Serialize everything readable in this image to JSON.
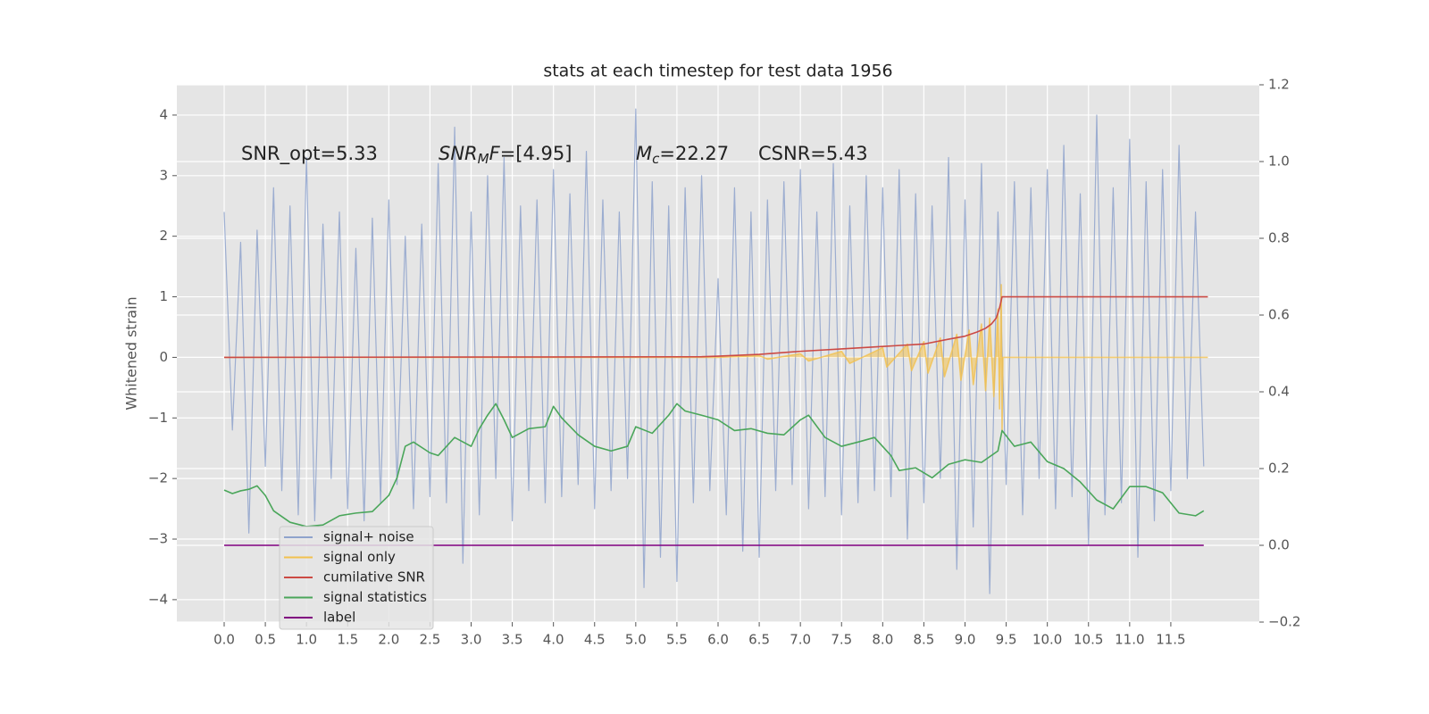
{
  "chart_data": {
    "type": "line",
    "title": "stats at each timestep for test data 1956",
    "ylabel": "Whitened strain",
    "annotations": [
      {
        "parts": [
          {
            "text": "SNR_opt=5.33",
            "style": "normal"
          }
        ]
      },
      {
        "parts": [
          {
            "text": "SNR",
            "style": "italic"
          },
          {
            "text": "M",
            "style": "sub"
          },
          {
            "text": "F",
            "style": "italic"
          },
          {
            "text": "=[4.95]",
            "style": "normal"
          }
        ]
      },
      {
        "parts": [
          {
            "text": "M",
            "style": "italic"
          },
          {
            "text": "c",
            "style": "sub"
          },
          {
            "text": "=22.27",
            "style": "normal"
          }
        ]
      },
      {
        "parts": [
          {
            "text": "CSNR=5.43",
            "style": "normal"
          }
        ]
      }
    ],
    "xlim": [
      -0.575,
      12.575
    ],
    "ylim": [
      -4.37,
      4.5
    ],
    "y2lim": [
      -0.2,
      1.2
    ],
    "xticks": [
      {
        "value": 0,
        "label": "0.0"
      },
      0.5,
      {
        "value": 1,
        "label": "1.0"
      },
      1.5,
      {
        "value": 2,
        "label": "2.0"
      },
      2.5,
      {
        "value": 3,
        "label": "3.0"
      },
      3.5,
      {
        "value": 4,
        "label": "4.0"
      },
      4.5,
      {
        "value": 5,
        "label": "5.0"
      },
      5.5,
      {
        "value": 6,
        "label": "6.0"
      },
      6.5,
      {
        "value": 7,
        "label": "7.0"
      },
      7.5,
      {
        "value": 8,
        "label": "8.0"
      },
      8.5,
      {
        "value": 9,
        "label": "9.0"
      },
      9.5,
      {
        "value": 10,
        "label": "10.0"
      },
      10.5,
      {
        "value": 11,
        "label": "11.0"
      },
      11.5
    ],
    "yticks": [
      {
        "value": -4,
        "label": "−4"
      },
      {
        "value": -3,
        "label": "−3"
      },
      {
        "value": -2,
        "label": "−2"
      },
      {
        "value": -1,
        "label": "−1"
      },
      0,
      1,
      2,
      3,
      4
    ],
    "y2ticks": [
      {
        "value": -0.2,
        "label": "−0.2"
      },
      {
        "value": 0,
        "label": "0.0"
      },
      0.2,
      0.4,
      0.6,
      0.8,
      {
        "value": 1,
        "label": "1.0"
      },
      1.2
    ],
    "grid": true,
    "legend": "lower left",
    "series": [
      {
        "name": "signal+ noise",
        "color": "#8fa3cc",
        "x": [
          0,
          0.1,
          0.2,
          0.3,
          0.4,
          0.5,
          0.6,
          0.7,
          0.8,
          0.9,
          1.0,
          1.1,
          1.2,
          1.3,
          1.4,
          1.5,
          1.6,
          1.7,
          1.8,
          1.9,
          2.0,
          2.1,
          2.2,
          2.3,
          2.4,
          2.5,
          2.6,
          2.7,
          2.8,
          2.9,
          3.0,
          3.1,
          3.2,
          3.3,
          3.4,
          3.5,
          3.6,
          3.7,
          3.8,
          3.9,
          4.0,
          4.1,
          4.2,
          4.3,
          4.4,
          4.5,
          4.6,
          4.7,
          4.8,
          4.9,
          5.0,
          5.1,
          5.2,
          5.3,
          5.4,
          5.5,
          5.6,
          5.7,
          5.8,
          5.9,
          6.0,
          6.1,
          6.2,
          6.3,
          6.4,
          6.5,
          6.6,
          6.7,
          6.8,
          6.9,
          7.0,
          7.1,
          7.2,
          7.3,
          7.4,
          7.5,
          7.6,
          7.7,
          7.8,
          7.9,
          8.0,
          8.1,
          8.2,
          8.3,
          8.4,
          8.5,
          8.6,
          8.7,
          8.8,
          8.9,
          9.0,
          9.1,
          9.2,
          9.3,
          9.4,
          9.5,
          9.6,
          9.7,
          9.8,
          9.9,
          10.0,
          10.1,
          10.2,
          10.3,
          10.4,
          10.5,
          10.6,
          10.7,
          10.8,
          10.9,
          11.0,
          11.1,
          11.2,
          11.3,
          11.4,
          11.5,
          11.6,
          11.7,
          11.8,
          11.9
        ],
        "values": [
          2.4,
          -1.2,
          1.9,
          -2.9,
          2.1,
          -1.8,
          2.8,
          -2.2,
          2.5,
          -2.6,
          3.3,
          -2.7,
          2.2,
          -2.0,
          2.4,
          -2.5,
          1.8,
          -2.7,
          2.3,
          -2.4,
          2.6,
          -2.1,
          2.0,
          -2.5,
          2.2,
          -2.3,
          3.2,
          -2.4,
          3.8,
          -3.4,
          2.4,
          -2.6,
          3.0,
          -2.0,
          3.3,
          -2.7,
          2.5,
          -2.2,
          2.6,
          -2.4,
          3.1,
          -2.3,
          2.7,
          -2.1,
          3.4,
          -2.5,
          2.6,
          -2.2,
          2.4,
          -2.0,
          4.1,
          -3.8,
          2.9,
          -3.3,
          2.5,
          -3.7,
          2.8,
          -2.4,
          3.0,
          -2.2,
          1.3,
          -2.6,
          2.8,
          -3.2,
          2.4,
          -3.3,
          2.6,
          -2.2,
          2.9,
          -2.1,
          3.1,
          -2.5,
          2.4,
          -2.3,
          3.2,
          -2.6,
          2.5,
          -2.4,
          3.0,
          -2.2,
          2.8,
          -2.3,
          3.1,
          -3.0,
          2.7,
          -2.4,
          2.5,
          -2.0,
          3.3,
          -3.5,
          2.6,
          -2.8,
          3.2,
          -3.9,
          2.4,
          -2.1,
          2.9,
          -2.6,
          2.8,
          -2.0,
          3.1,
          -2.5,
          3.5,
          -2.3,
          2.7,
          -3.1,
          4.0,
          -2.6,
          2.8,
          -2.4,
          3.6,
          -3.3,
          2.9,
          -2.7,
          3.1,
          -2.2,
          3.5,
          -2.0,
          2.4,
          -1.8
        ]
      },
      {
        "name": "signal only",
        "color": "#f2c14e",
        "x": [
          0,
          6.0,
          6.5,
          6.6,
          7.0,
          7.1,
          7.5,
          7.6,
          8.0,
          8.05,
          8.3,
          8.35,
          8.5,
          8.55,
          8.7,
          8.75,
          8.9,
          8.95,
          9.05,
          9.1,
          9.2,
          9.25,
          9.3,
          9.35,
          9.4,
          9.42,
          9.44,
          9.45,
          9.46,
          11.95
        ],
        "values": [
          0,
          0,
          0.03,
          -0.03,
          0.06,
          -0.06,
          0.1,
          -0.1,
          0.16,
          -0.16,
          0.22,
          -0.22,
          0.26,
          -0.26,
          0.32,
          -0.32,
          0.38,
          -0.38,
          0.45,
          -0.45,
          0.55,
          -0.55,
          0.65,
          -0.65,
          0.8,
          -0.85,
          1.2,
          -1.2,
          0,
          0
        ]
      },
      {
        "name": "cumilative SNR",
        "color": "#cc4a44",
        "x": [
          0,
          5.8,
          6.0,
          6.5,
          7.0,
          7.5,
          8.0,
          8.5,
          8.8,
          9.0,
          9.15,
          9.25,
          9.32,
          9.38,
          9.42,
          9.45,
          11.95
        ],
        "values": [
          0,
          0.01,
          0.02,
          0.05,
          0.1,
          0.14,
          0.18,
          0.22,
          0.3,
          0.35,
          0.42,
          0.48,
          0.55,
          0.65,
          0.82,
          1.0,
          1.0
        ]
      },
      {
        "name": "signal statistics",
        "color": "#4aa65a",
        "axis": "y2",
        "x": [
          0,
          0.1,
          0.2,
          0.3,
          0.4,
          0.5,
          0.6,
          0.8,
          1.0,
          1.2,
          1.4,
          1.6,
          1.8,
          2.0,
          2.1,
          2.2,
          2.3,
          2.5,
          2.6,
          2.8,
          3.0,
          3.1,
          3.2,
          3.3,
          3.4,
          3.5,
          3.7,
          3.9,
          4.0,
          4.1,
          4.3,
          4.5,
          4.7,
          4.9,
          5.0,
          5.2,
          5.4,
          5.5,
          5.6,
          5.8,
          6.0,
          6.2,
          6.4,
          6.6,
          6.8,
          7.0,
          7.1,
          7.3,
          7.5,
          7.7,
          7.9,
          8.1,
          8.2,
          8.4,
          8.6,
          8.8,
          9.0,
          9.2,
          9.4,
          9.45,
          9.6,
          9.8,
          10.0,
          10.2,
          10.4,
          10.6,
          10.8,
          11.0,
          11.2,
          11.4,
          11.6,
          11.8,
          11.9
        ],
        "values": [
          0.144,
          0.135,
          0.142,
          0.146,
          0.155,
          0.13,
          0.09,
          0.06,
          0.049,
          0.053,
          0.077,
          0.084,
          0.088,
          0.13,
          0.176,
          0.258,
          0.269,
          0.241,
          0.234,
          0.281,
          0.258,
          0.304,
          0.339,
          0.369,
          0.327,
          0.281,
          0.304,
          0.309,
          0.362,
          0.332,
          0.288,
          0.258,
          0.246,
          0.258,
          0.309,
          0.292,
          0.339,
          0.369,
          0.35,
          0.339,
          0.327,
          0.299,
          0.304,
          0.292,
          0.288,
          0.327,
          0.339,
          0.281,
          0.258,
          0.269,
          0.281,
          0.234,
          0.195,
          0.202,
          0.176,
          0.211,
          0.223,
          0.216,
          0.246,
          0.299,
          0.258,
          0.269,
          0.218,
          0.2,
          0.165,
          0.118,
          0.095,
          0.153,
          0.153,
          0.137,
          0.084,
          0.077,
          0.09
        ]
      },
      {
        "name": "label",
        "color": "#800080",
        "axis": "y2",
        "x": [
          0,
          11.9
        ],
        "values": [
          0,
          0
        ]
      }
    ]
  }
}
